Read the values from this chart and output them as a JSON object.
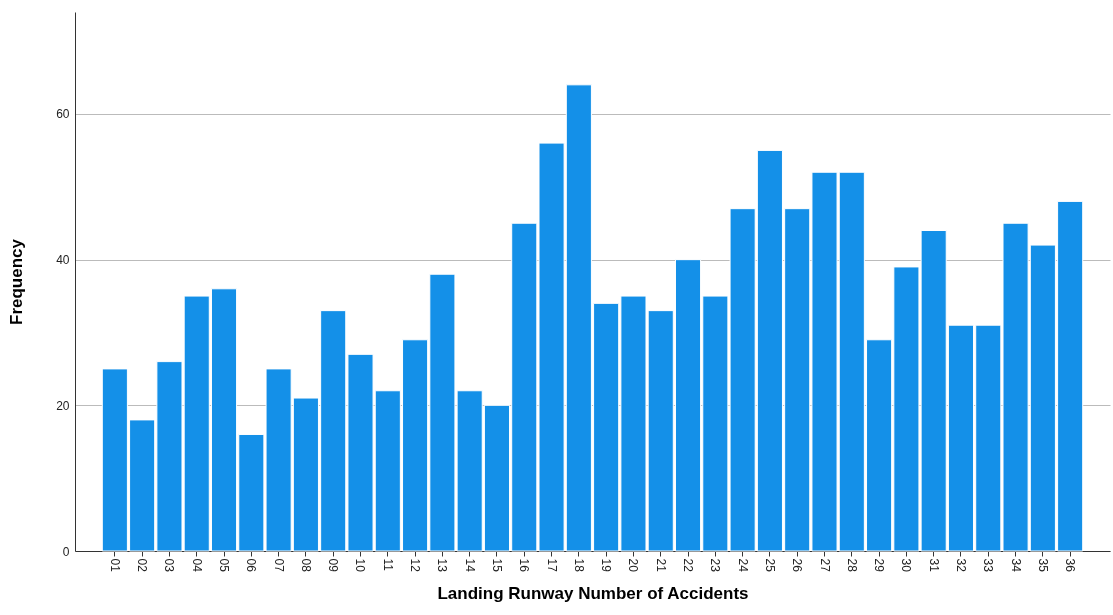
{
  "chart_data": {
    "type": "bar",
    "xlabel": "Landing Runway Number of Accidents",
    "ylabel": "Frequency",
    "categories": [
      "01",
      "02",
      "03",
      "04",
      "05",
      "06",
      "07",
      "08",
      "09",
      "10",
      "11",
      "12",
      "13",
      "14",
      "15",
      "16",
      "17",
      "18",
      "19",
      "20",
      "21",
      "22",
      "23",
      "24",
      "25",
      "26",
      "27",
      "28",
      "29",
      "30",
      "31",
      "32",
      "33",
      "34",
      "35",
      "36"
    ],
    "values": [
      25,
      18,
      26,
      35,
      36,
      16,
      25,
      21,
      33,
      27,
      22,
      29,
      38,
      22,
      20,
      45,
      56,
      64,
      34,
      35,
      33,
      40,
      35,
      47,
      55,
      47,
      52,
      52,
      29,
      39,
      44,
      31,
      31,
      45,
      42,
      48
    ],
    "color": "#1490e8",
    "ylim": [
      0,
      74
    ],
    "yticks": [
      0,
      20,
      40,
      60
    ],
    "grid": "y"
  }
}
